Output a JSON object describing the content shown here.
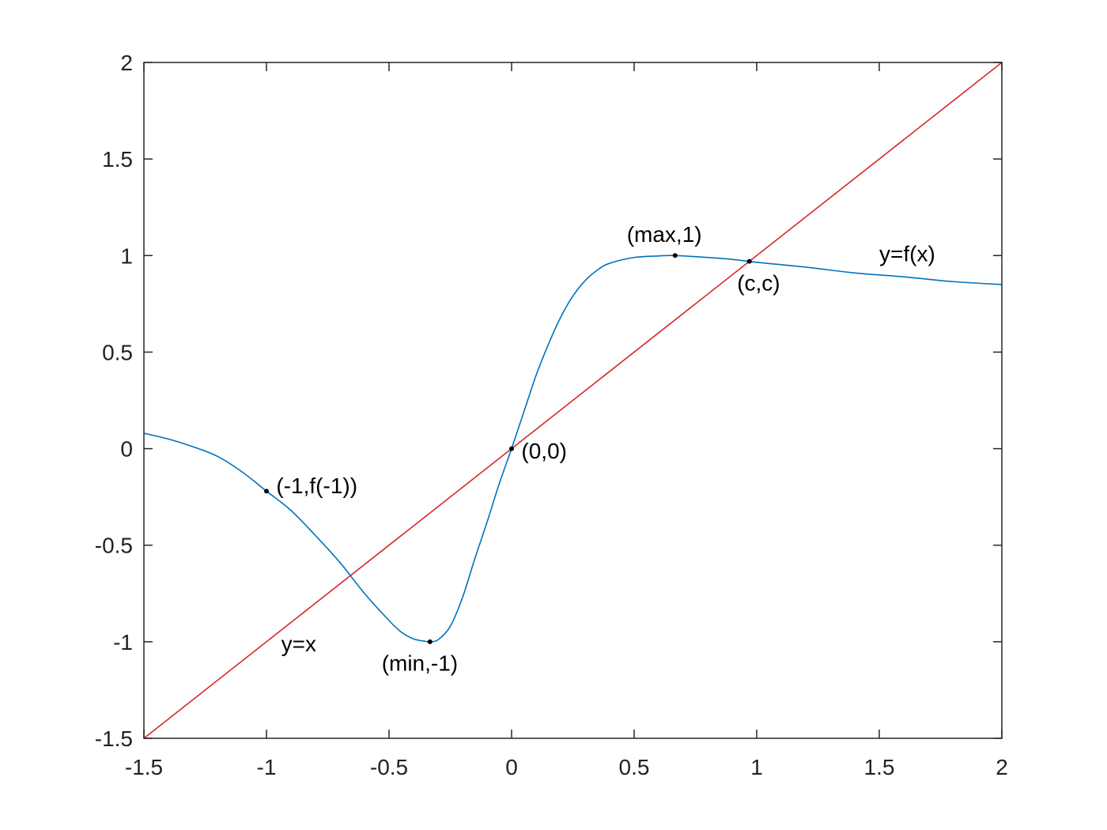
{
  "chart_data": {
    "type": "line",
    "title": "",
    "xlabel": "",
    "ylabel": "",
    "xlim": [
      -1.5,
      2
    ],
    "ylim": [
      -1.5,
      2
    ],
    "grid": false,
    "xticks": [
      -1.5,
      -1,
      -0.5,
      0,
      0.5,
      1,
      1.5,
      2
    ],
    "xtick_labels": [
      "-1.5",
      "-1",
      "-0.5",
      "0",
      "0.5",
      "1",
      "1.5",
      "2"
    ],
    "yticks": [
      -1.5,
      -1,
      -0.5,
      0,
      0.5,
      1,
      1.5,
      2
    ],
    "ytick_labels": [
      "-1.5",
      "-1",
      "-0.5",
      "0",
      "0.5",
      "1",
      "1.5",
      "2"
    ],
    "series": [
      {
        "color": "#0072BD",
        "x": [
          -1.5,
          -1.4,
          -1.3,
          -1.2,
          -1.1,
          -1.0,
          -0.9,
          -0.8,
          -0.7,
          -0.6,
          -0.5,
          -0.45,
          -0.4,
          -0.35,
          -0.333,
          -0.3,
          -0.25,
          -0.2,
          -0.15,
          -0.1,
          -0.05,
          0,
          0.05,
          0.1,
          0.15,
          0.2,
          0.25,
          0.3,
          0.35,
          0.4,
          0.5,
          0.6,
          0.667,
          0.8,
          0.9,
          1.0,
          1.2,
          1.4,
          1.6,
          1.8,
          2.0
        ],
        "y": [
          0.08,
          0.05,
          0.01,
          -0.04,
          -0.12,
          -0.22,
          -0.32,
          -0.45,
          -0.59,
          -0.75,
          -0.89,
          -0.95,
          -0.985,
          -0.998,
          -1.0,
          -0.99,
          -0.92,
          -0.77,
          -0.57,
          -0.38,
          -0.18,
          0.0,
          0.19,
          0.38,
          0.54,
          0.68,
          0.79,
          0.87,
          0.925,
          0.96,
          0.99,
          0.998,
          1.0,
          0.99,
          0.98,
          0.965,
          0.94,
          0.91,
          0.89,
          0.865,
          0.85
        ]
      },
      {
        "color": "#D62728",
        "x": [
          -1.5,
          2
        ],
        "y": [
          -1.5,
          2
        ]
      }
    ],
    "points": [
      {
        "x": 0.667,
        "y": 1.0
      },
      {
        "x": 0.97,
        "y": 0.97
      },
      {
        "x": 0,
        "y": 0
      },
      {
        "x": -1,
        "y": -0.22
      },
      {
        "x": -0.333,
        "y": -1.0
      }
    ],
    "annotations": [
      {
        "text": "(max,1)",
        "x": 0.47,
        "y": 1.07
      },
      {
        "text": "(c,c)",
        "x": 0.92,
        "y": 0.82
      },
      {
        "text": "y=f(x)",
        "x": 1.5,
        "y": 0.97
      },
      {
        "text": "(0,0)",
        "x": 0.04,
        "y": -0.05
      },
      {
        "text": "(-1,f(-1))",
        "x": -0.96,
        "y": -0.23
      },
      {
        "text": "y=x",
        "x": -0.94,
        "y": -1.05
      },
      {
        "text": "(min,-1)",
        "x": -0.53,
        "y": -1.15
      }
    ]
  }
}
